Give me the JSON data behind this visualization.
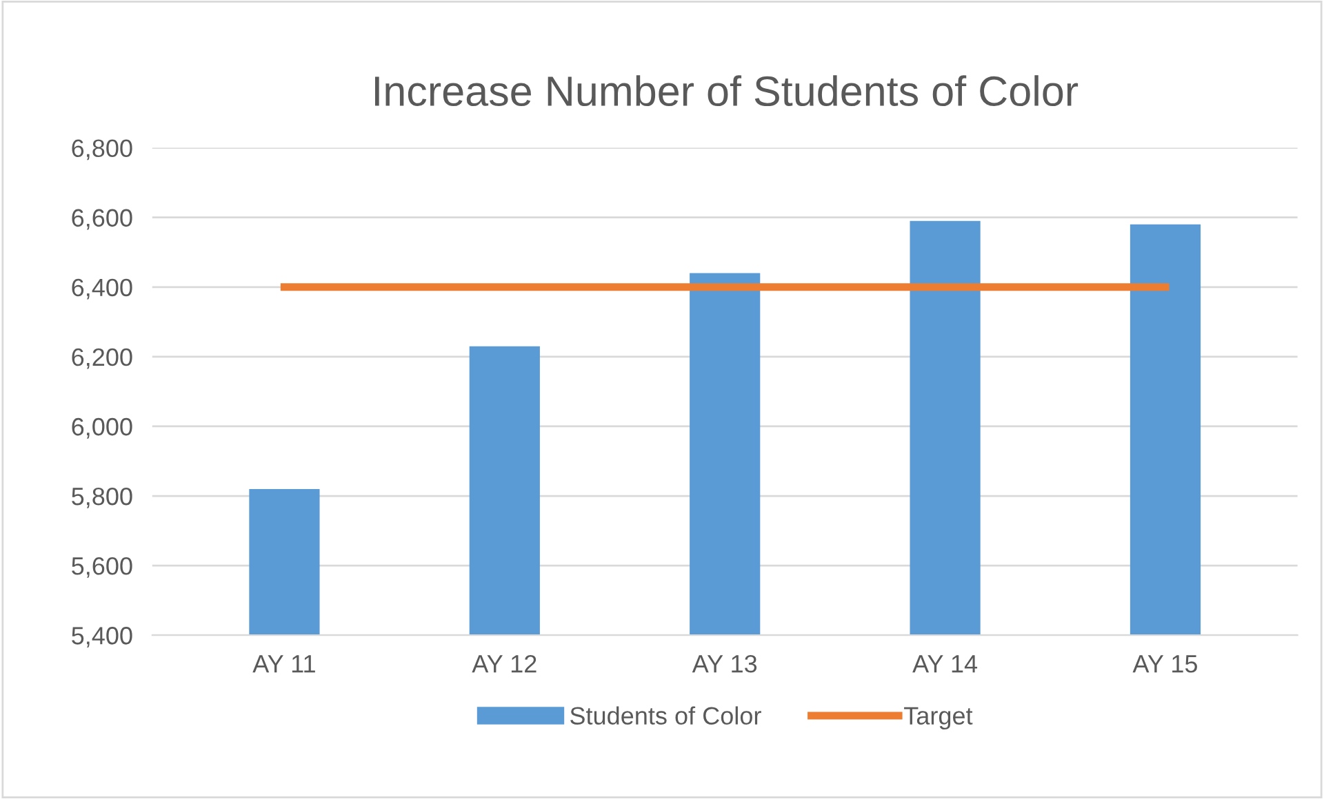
{
  "chart_data": {
    "type": "bar",
    "title": "Increase Number of Students of Color",
    "categories": [
      "AY 11",
      "AY 12",
      "AY 13",
      "AY 14",
      "AY 15"
    ],
    "series": [
      {
        "name": "Students of Color",
        "color": "#5b9bd5",
        "values": [
          5820,
          6230,
          6440,
          6590,
          6580
        ]
      },
      {
        "name": "Target",
        "type": "line",
        "color": "#ed7d31",
        "values": [
          6400,
          6400,
          6400,
          6400,
          6400
        ]
      }
    ],
    "ylim": [
      5400,
      6800
    ],
    "yticks": [
      {
        "value": 5400,
        "label": "5,400"
      },
      {
        "value": 5600,
        "label": "5,600"
      },
      {
        "value": 5800,
        "label": "5,800"
      },
      {
        "value": 6000,
        "label": "6,000"
      },
      {
        "value": 6200,
        "label": "6,200"
      },
      {
        "value": 6400,
        "label": "6,400"
      },
      {
        "value": 6600,
        "label": "6,600"
      },
      {
        "value": 6800,
        "label": "6,800"
      }
    ],
    "grid": "y",
    "legend": "bottom"
  }
}
